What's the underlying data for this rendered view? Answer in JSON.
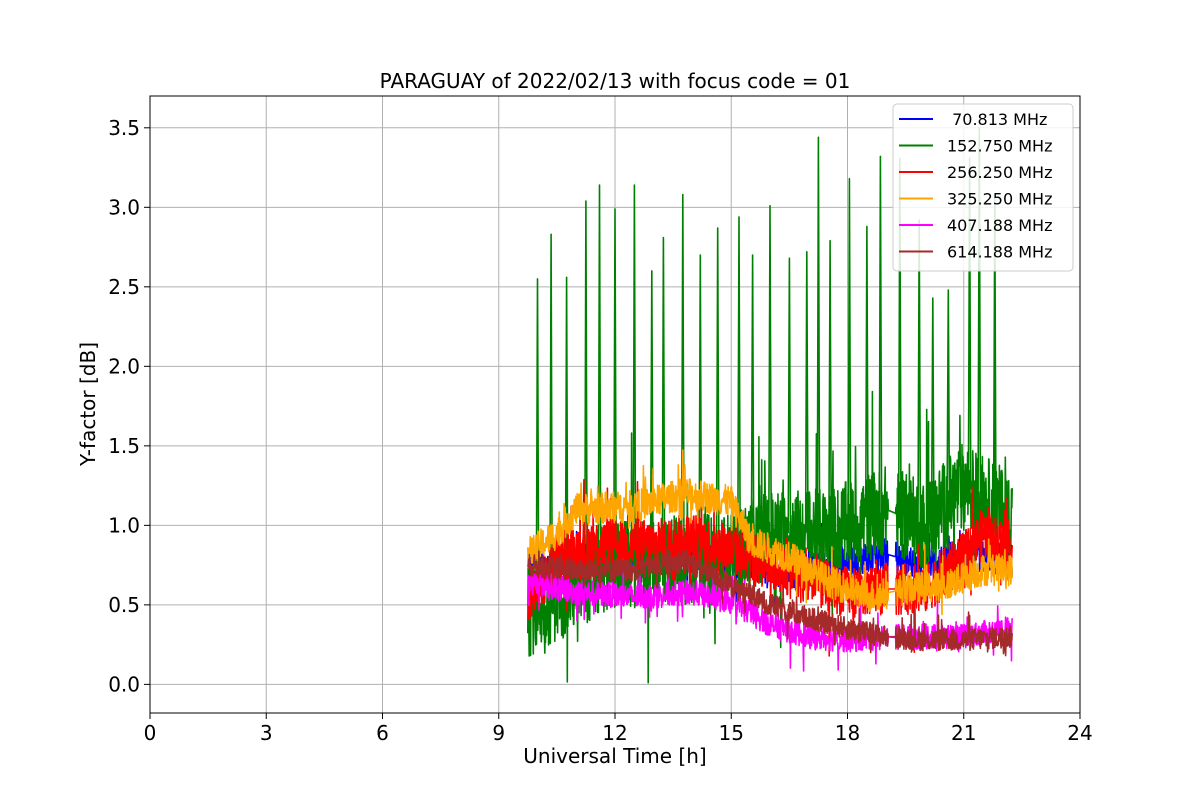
{
  "chart_data": {
    "type": "line",
    "title": "PARAGUAY of 2022/02/13 with focus code = 01",
    "xlabel": "Universal Time [h]",
    "ylabel": "Y-factor [dB]",
    "xlim": [
      0,
      24
    ],
    "ylim": [
      -0.18,
      3.7
    ],
    "xticks": [
      0,
      3,
      6,
      9,
      12,
      15,
      18,
      21,
      24
    ],
    "xtick_labels": [
      "0",
      "3",
      "6",
      "9",
      "12",
      "15",
      "18",
      "21",
      "24"
    ],
    "yticks": [
      0.0,
      0.5,
      1.0,
      1.5,
      2.0,
      2.5,
      3.0,
      3.5
    ],
    "ytick_labels": [
      "0.0",
      "0.5",
      "1.0",
      "1.5",
      "2.0",
      "2.5",
      "3.0",
      "3.5"
    ],
    "grid": true,
    "legend_position": "top-right",
    "data_range_hours": [
      9.75,
      22.25
    ],
    "gap_hours": [
      19.05,
      19.25
    ],
    "series": [
      {
        "name": " 70.813 MHz",
        "color": "#0000ff",
        "profile": [
          [
            9.75,
            0.72
          ],
          [
            11.0,
            0.78
          ],
          [
            13.5,
            0.82
          ],
          [
            15.0,
            0.78
          ],
          [
            16.5,
            0.7
          ],
          [
            18.0,
            0.78
          ],
          [
            19.0,
            0.82
          ],
          [
            20.0,
            0.75
          ],
          [
            21.0,
            0.82
          ],
          [
            22.25,
            0.78
          ]
        ],
        "noise": 0.1,
        "spikes": []
      },
      {
        "name": "152.750 MHz",
        "color": "#008000",
        "profile": [
          [
            9.75,
            0.45
          ],
          [
            10.5,
            0.55
          ],
          [
            12.0,
            0.75
          ],
          [
            13.5,
            0.78
          ],
          [
            15.0,
            0.8
          ],
          [
            16.0,
            0.95
          ],
          [
            17.5,
            0.95
          ],
          [
            19.0,
            1.1
          ],
          [
            20.0,
            1.0
          ],
          [
            21.0,
            1.25
          ],
          [
            22.25,
            1.05
          ]
        ],
        "noise": 0.28,
        "spikes": [
          [
            10.0,
            2.55
          ],
          [
            10.35,
            2.83
          ],
          [
            10.75,
            2.56
          ],
          [
            11.25,
            3.04
          ],
          [
            11.6,
            3.14
          ],
          [
            12.0,
            2.99
          ],
          [
            12.5,
            3.14
          ],
          [
            12.95,
            2.6
          ],
          [
            13.25,
            2.81
          ],
          [
            13.75,
            3.08
          ],
          [
            14.2,
            2.7
          ],
          [
            14.65,
            2.87
          ],
          [
            15.2,
            2.94
          ],
          [
            15.55,
            2.7
          ],
          [
            16.0,
            3.01
          ],
          [
            16.5,
            2.68
          ],
          [
            16.95,
            2.72
          ],
          [
            17.25,
            3.44
          ],
          [
            17.55,
            2.79
          ],
          [
            18.05,
            3.18
          ],
          [
            18.5,
            2.88
          ],
          [
            18.85,
            3.32
          ],
          [
            19.35,
            3.31
          ],
          [
            19.85,
            2.92
          ],
          [
            20.2,
            2.43
          ],
          [
            20.6,
            2.48
          ],
          [
            21.15,
            3.31
          ],
          [
            21.4,
            3.5
          ],
          [
            21.8,
            3.05
          ]
        ]
      },
      {
        "name": "256.250 MHz",
        "color": "#ff0000",
        "profile": [
          [
            9.75,
            0.5
          ],
          [
            10.5,
            0.8
          ],
          [
            11.5,
            0.88
          ],
          [
            13.0,
            0.88
          ],
          [
            14.0,
            0.92
          ],
          [
            15.0,
            0.85
          ],
          [
            16.0,
            0.75
          ],
          [
            17.0,
            0.65
          ],
          [
            18.0,
            0.58
          ],
          [
            19.0,
            0.6
          ],
          [
            20.0,
            0.6
          ],
          [
            21.0,
            0.8
          ],
          [
            21.5,
            0.95
          ],
          [
            22.25,
            0.85
          ]
        ],
        "noise": 0.16,
        "spikes": []
      },
      {
        "name": "325.250 MHz",
        "color": "#ffa500",
        "profile": [
          [
            9.75,
            0.82
          ],
          [
            10.5,
            0.95
          ],
          [
            11.0,
            1.1
          ],
          [
            12.5,
            1.12
          ],
          [
            13.8,
            1.2
          ],
          [
            15.0,
            1.15
          ],
          [
            15.5,
            0.9
          ],
          [
            16.5,
            0.8
          ],
          [
            17.5,
            0.65
          ],
          [
            18.5,
            0.55
          ],
          [
            19.5,
            0.6
          ],
          [
            20.5,
            0.62
          ],
          [
            21.5,
            0.72
          ],
          [
            22.25,
            0.72
          ]
        ],
        "noise": 0.1,
        "spikes": []
      },
      {
        "name": "407.188 MHz",
        "color": "#ff00ff",
        "profile": [
          [
            9.75,
            0.65
          ],
          [
            11.0,
            0.58
          ],
          [
            12.5,
            0.55
          ],
          [
            14.0,
            0.58
          ],
          [
            15.0,
            0.52
          ],
          [
            16.0,
            0.38
          ],
          [
            17.0,
            0.3
          ],
          [
            18.0,
            0.28
          ],
          [
            19.0,
            0.3
          ],
          [
            20.0,
            0.3
          ],
          [
            21.0,
            0.3
          ],
          [
            22.25,
            0.35
          ]
        ],
        "noise": 0.08,
        "spikes": []
      },
      {
        "name": "614.188 MHz",
        "color": "#a52a2a",
        "profile": [
          [
            9.75,
            0.75
          ],
          [
            11.0,
            0.72
          ],
          [
            12.5,
            0.72
          ],
          [
            13.8,
            0.78
          ],
          [
            15.0,
            0.62
          ],
          [
            16.0,
            0.5
          ],
          [
            17.0,
            0.42
          ],
          [
            18.0,
            0.35
          ],
          [
            19.0,
            0.3
          ],
          [
            20.0,
            0.28
          ],
          [
            21.0,
            0.28
          ],
          [
            22.25,
            0.3
          ]
        ],
        "noise": 0.07,
        "spikes": []
      }
    ]
  }
}
